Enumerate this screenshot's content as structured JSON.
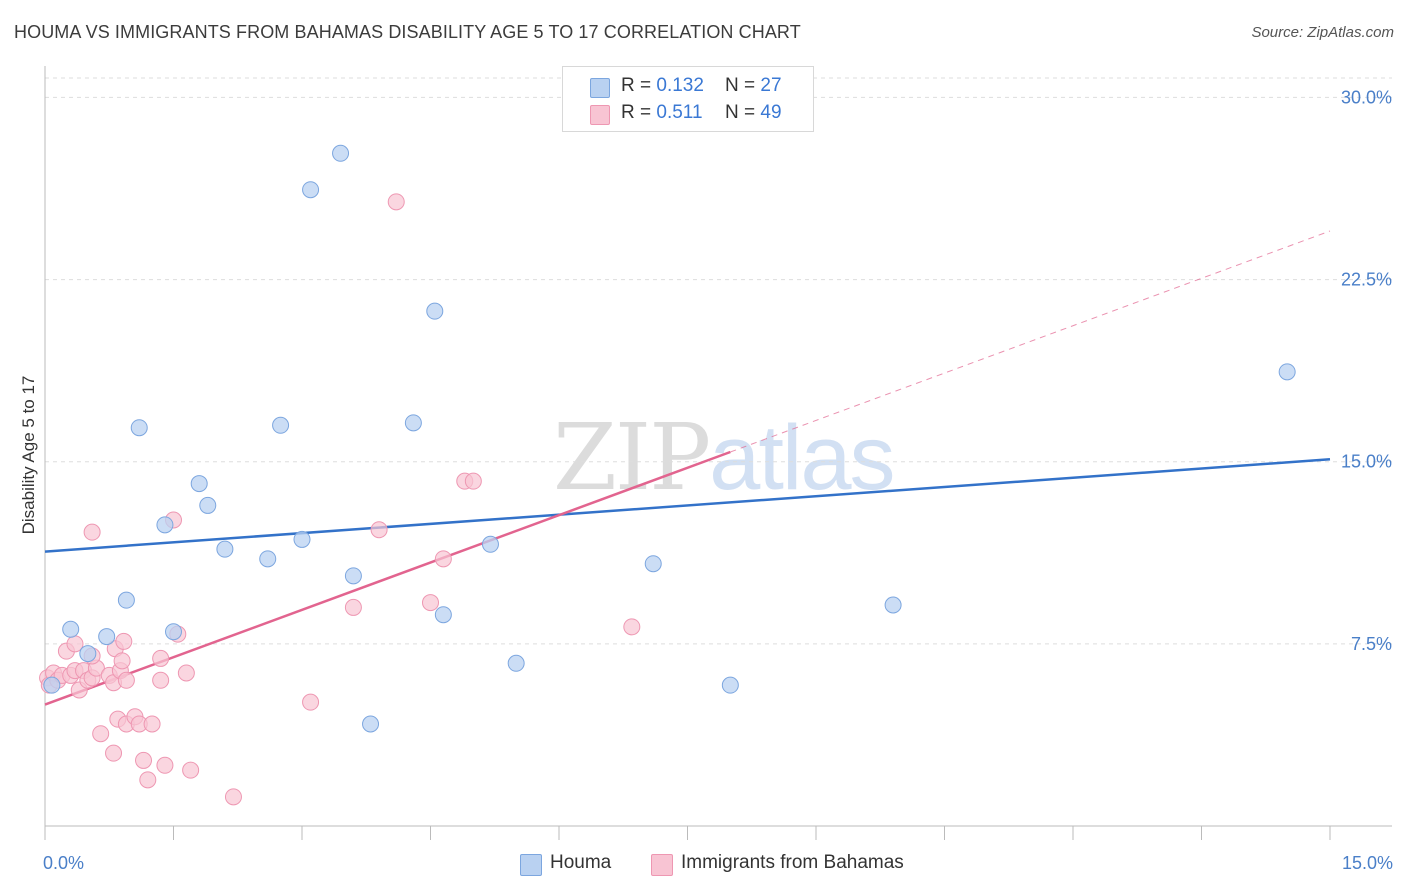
{
  "title": "HOUMA VS IMMIGRANTS FROM BAHAMAS DISABILITY AGE 5 TO 17 CORRELATION CHART",
  "source": "Source: ZipAtlas.com",
  "watermark": {
    "part1": "ZIP",
    "part2": "atlas"
  },
  "legend": {
    "r_label": "R = ",
    "n_label": "N = ",
    "rows": [
      {
        "r": "0.132",
        "n": "27"
      },
      {
        "r": "0.511",
        "n": "49"
      }
    ]
  },
  "colors": {
    "houma_fill": "#b9d1f1",
    "houma_stroke": "#7ca6df",
    "houma_line": "#3372c9",
    "bahamas_fill": "#f8c4d3",
    "bahamas_stroke": "#ee97b2",
    "bahamas_line": "#e2648f",
    "tick_text": "#4a7fc8",
    "grid": "#dddddd"
  },
  "chart_data": {
    "type": "scatter",
    "title": "HOUMA VS IMMIGRANTS FROM BAHAMAS DISABILITY AGE 5 TO 17 CORRELATION CHART",
    "xlabel": "",
    "ylabel": "Disability Age 5 to 17",
    "xlim": [
      0,
      15
    ],
    "ylim": [
      0,
      30.8
    ],
    "x_tick_labels": [
      "0.0%",
      "15.0%"
    ],
    "y_ticks": [
      7.5,
      15.0,
      22.5,
      30.0
    ],
    "y_tick_labels": [
      "7.5%",
      "15.0%",
      "22.5%",
      "30.0%"
    ],
    "grid": "horizontal dashed",
    "legend_position": "top-center",
    "series": [
      {
        "name": "Houma",
        "r": 0.132,
        "n": 27,
        "trend": {
          "x": [
            0,
            15
          ],
          "y": [
            11.3,
            15.1
          ],
          "dashed_extension": false
        },
        "points": [
          [
            0.08,
            5.8
          ],
          [
            0.3,
            8.1
          ],
          [
            0.5,
            7.1
          ],
          [
            0.72,
            7.8
          ],
          [
            0.95,
            9.3
          ],
          [
            1.1,
            16.4
          ],
          [
            1.4,
            12.4
          ],
          [
            1.5,
            8.0
          ],
          [
            1.8,
            14.1
          ],
          [
            1.9,
            13.2
          ],
          [
            2.1,
            11.4
          ],
          [
            2.6,
            11.0
          ],
          [
            2.75,
            16.5
          ],
          [
            3.1,
            26.2
          ],
          [
            3.0,
            11.8
          ],
          [
            3.45,
            27.7
          ],
          [
            3.6,
            10.3
          ],
          [
            3.8,
            4.2
          ],
          [
            4.3,
            16.6
          ],
          [
            4.55,
            21.2
          ],
          [
            4.65,
            8.7
          ],
          [
            5.2,
            11.6
          ],
          [
            5.5,
            6.7
          ],
          [
            7.1,
            10.8
          ],
          [
            8.0,
            5.8
          ],
          [
            9.9,
            9.1
          ],
          [
            14.5,
            18.7
          ]
        ]
      },
      {
        "name": "Immigrants from Bahamas",
        "r": 0.511,
        "n": 49,
        "trend": {
          "x": [
            0,
            8.0
          ],
          "y": [
            5.0,
            15.4
          ],
          "dashed_x": [
            8.0,
            15.0
          ],
          "dashed_y": [
            15.4,
            24.5
          ]
        },
        "points": [
          [
            0.03,
            6.1
          ],
          [
            0.05,
            5.8
          ],
          [
            0.1,
            6.3
          ],
          [
            0.15,
            6.0
          ],
          [
            0.2,
            6.2
          ],
          [
            0.25,
            7.2
          ],
          [
            0.3,
            6.2
          ],
          [
            0.35,
            6.4
          ],
          [
            0.35,
            7.5
          ],
          [
            0.4,
            5.6
          ],
          [
            0.45,
            6.4
          ],
          [
            0.5,
            6.0
          ],
          [
            0.55,
            6.1
          ],
          [
            0.6,
            6.5
          ],
          [
            0.65,
            3.8
          ],
          [
            0.55,
            12.1
          ],
          [
            0.55,
            7.0
          ],
          [
            0.75,
            6.2
          ],
          [
            0.8,
            5.9
          ],
          [
            0.82,
            7.3
          ],
          [
            0.88,
            6.4
          ],
          [
            0.9,
            6.8
          ],
          [
            0.92,
            7.6
          ],
          [
            0.95,
            6.0
          ],
          [
            0.8,
            3.0
          ],
          [
            0.85,
            4.4
          ],
          [
            0.95,
            4.2
          ],
          [
            1.05,
            4.5
          ],
          [
            1.1,
            4.2
          ],
          [
            1.15,
            2.7
          ],
          [
            1.2,
            1.9
          ],
          [
            1.25,
            4.2
          ],
          [
            1.35,
            6.0
          ],
          [
            1.35,
            6.9
          ],
          [
            1.4,
            2.5
          ],
          [
            1.5,
            12.6
          ],
          [
            1.55,
            7.9
          ],
          [
            1.65,
            6.3
          ],
          [
            1.7,
            2.3
          ],
          [
            2.2,
            1.2
          ],
          [
            3.1,
            5.1
          ],
          [
            3.6,
            9.0
          ],
          [
            3.9,
            12.2
          ],
          [
            4.1,
            25.7
          ],
          [
            4.5,
            9.2
          ],
          [
            4.65,
            11.0
          ],
          [
            4.9,
            14.2
          ],
          [
            5.0,
            14.2
          ],
          [
            6.85,
            8.2
          ]
        ]
      }
    ]
  },
  "bottom_legend": [
    "Houma",
    "Immigrants from Bahamas"
  ]
}
